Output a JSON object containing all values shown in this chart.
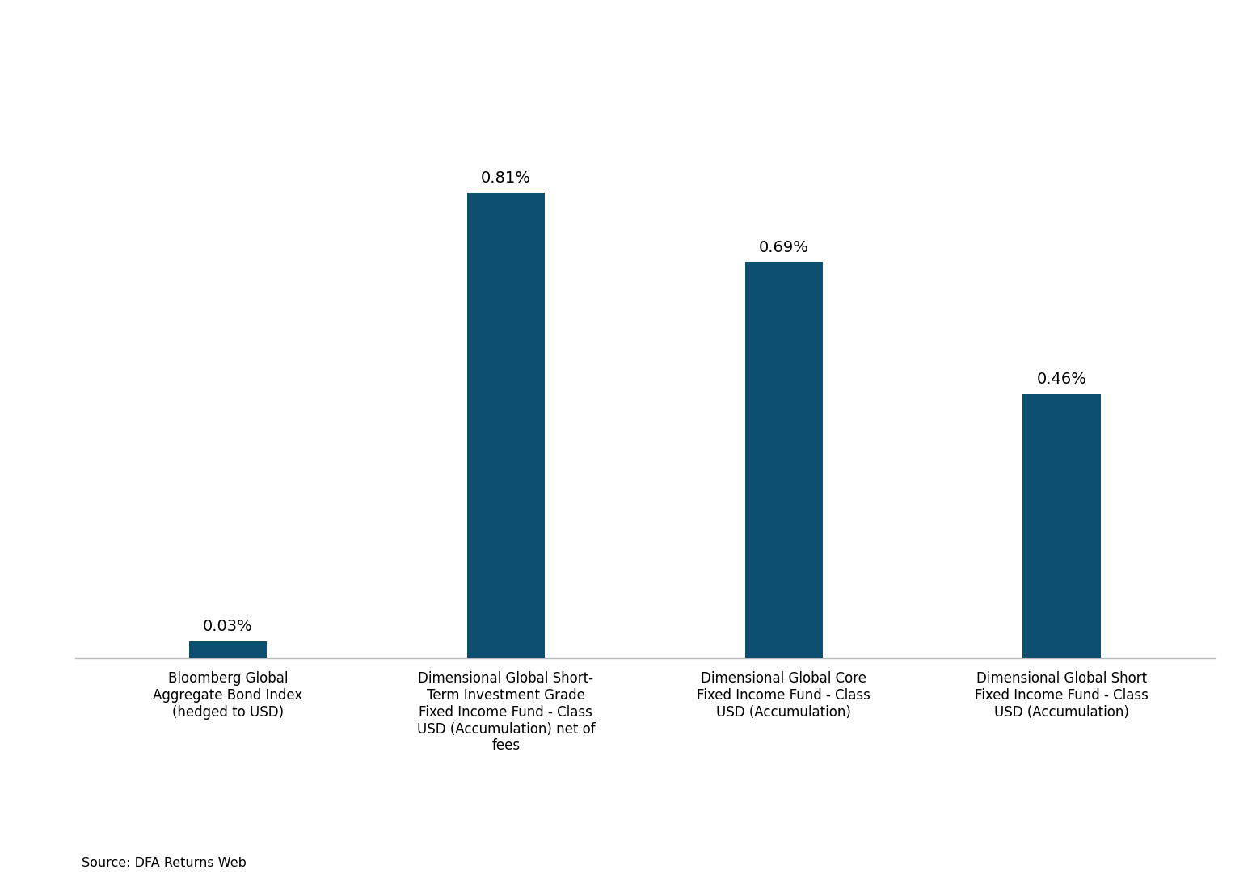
{
  "categories": [
    "Bloomberg Global\nAggregate Bond Index\n(hedged to USD)",
    "Dimensional Global Short-\nTerm Investment Grade\nFixed Income Fund - Class\nUSD (Accumulation) net of\nfees",
    "Dimensional Global Core\nFixed Income Fund - Class\nUSD (Accumulation)",
    "Dimensional Global Short\nFixed Income Fund - Class\nUSD (Accumulation)"
  ],
  "values": [
    0.03,
    0.81,
    0.69,
    0.46
  ],
  "bar_color": "#0d4f6e",
  "source_text": "Source: DFA Returns Web",
  "background_color": "#ffffff",
  "bar_width": 0.28,
  "ylim": [
    0,
    1.1
  ],
  "label_fontsize": 14,
  "tick_label_fontsize": 12,
  "source_fontsize": 11.5
}
